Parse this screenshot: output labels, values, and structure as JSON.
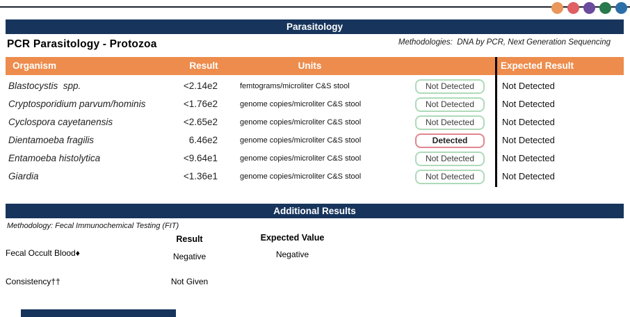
{
  "brand_dots": [
    {
      "name": "orange",
      "color": "#E9975A"
    },
    {
      "name": "red",
      "color": "#DF5F63"
    },
    {
      "name": "purple",
      "color": "#6A4B9E"
    },
    {
      "name": "green",
      "color": "#287A4C"
    },
    {
      "name": "blue",
      "color": "#2C6FA8"
    }
  ],
  "colors": {
    "navy": "#17355C",
    "orange": "#ED8C4C",
    "badge_green_border": "#AEDAB9",
    "badge_red_border": "#E2858F"
  },
  "section": {
    "title": "Parasitology",
    "subtitle": "PCR Parasitology - Protozoa",
    "methodologies": "Methodologies:  DNA by PCR, Next Generation Sequencing"
  },
  "table": {
    "columns": {
      "organism": "Organism",
      "result": "Result",
      "units": "Units",
      "expected": "Expected Result"
    },
    "rows": [
      {
        "organism": "Blastocystis  spp.",
        "result": "<2.14e2",
        "units": "femtograms/microliter C&S stool",
        "status": "Not Detected",
        "expected": "Not Detected"
      },
      {
        "organism": "Cryptosporidium parvum/hominis",
        "result": "<1.76e2",
        "units": "genome copies/microliter C&S stool",
        "status": "Not Detected",
        "expected": "Not Detected"
      },
      {
        "organism": "Cyclospora cayetanensis",
        "result": "<2.65e2",
        "units": "genome copies/microliter C&S stool",
        "status": "Not Detected",
        "expected": "Not Detected"
      },
      {
        "organism": "Dientamoeba fragilis",
        "result": "6.46e2",
        "units": "genome copies/microliter C&S stool",
        "status": "Detected",
        "expected": "Not Detected"
      },
      {
        "organism": "Entamoeba histolytica",
        "result": "<9.64e1",
        "units": "genome copies/microliter C&S stool",
        "status": "Not Detected",
        "expected": "Not Detected"
      },
      {
        "organism": "Giardia",
        "result": "<1.36e1",
        "units": "genome copies/microliter C&S stool",
        "status": "Not Detected",
        "expected": "Not Detected"
      }
    ]
  },
  "additional": {
    "title": "Additional Results",
    "methodology": "Methodology: Fecal Immunochemical Testing (FIT)",
    "columns": {
      "result": "Result",
      "expected": "Expected Value"
    },
    "rows": [
      {
        "label": "Fecal Occult Blood♦",
        "result": "Negative",
        "expected": "Negative"
      },
      {
        "label": "Consistency††",
        "result": "Not Given",
        "expected": ""
      }
    ]
  }
}
